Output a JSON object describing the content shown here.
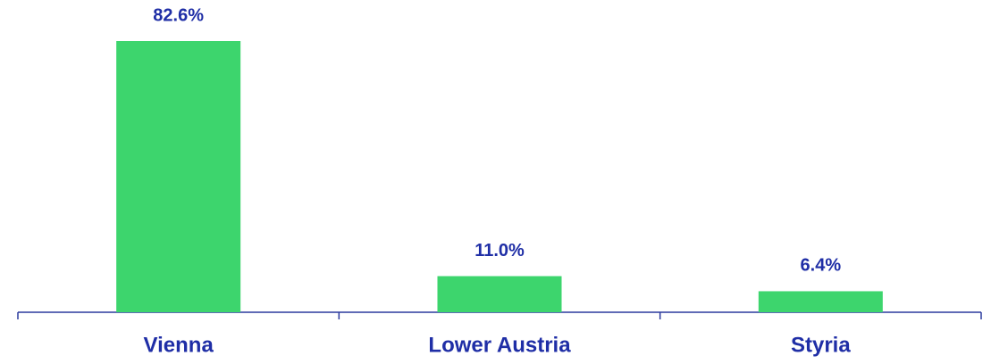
{
  "chart_data": {
    "type": "bar",
    "categories": [
      "Vienna",
      "Lower Austria",
      "Styria"
    ],
    "values": [
      82.6,
      11.0,
      6.4
    ],
    "value_labels": [
      "82.6%",
      "11.0%",
      "6.4%"
    ],
    "color": "#3dd56d"
  }
}
